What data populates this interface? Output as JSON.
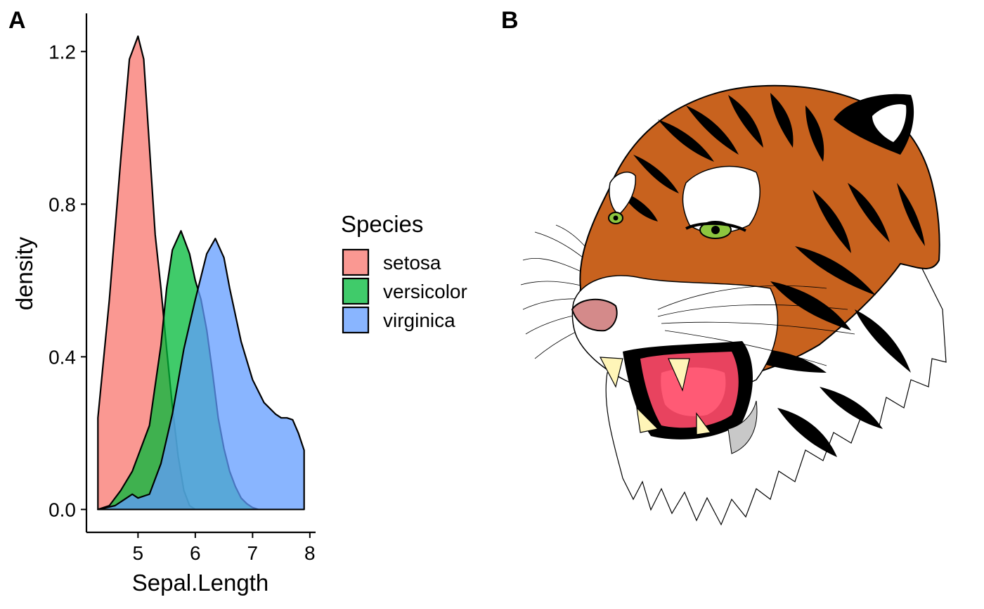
{
  "panels": {
    "a_label": "A",
    "b_label": "B"
  },
  "chart_data": {
    "type": "area",
    "xlabel": "Sepal.Length",
    "ylabel": "density",
    "xlim": [
      4.1,
      8.1
    ],
    "ylim": [
      -0.06,
      1.3
    ],
    "x_ticks": [
      5,
      6,
      7,
      8
    ],
    "y_ticks": [
      0.0,
      0.4,
      0.8,
      1.2
    ],
    "y_tick_labels": [
      "0.0",
      "0.4",
      "0.8",
      "1.2"
    ],
    "grid": false,
    "legend_title": "Species",
    "legend_position": "right",
    "series": [
      {
        "name": "setosa",
        "color": "#F8766D",
        "points": [
          [
            4.3,
            0.24
          ],
          [
            4.5,
            0.55
          ],
          [
            4.7,
            0.92
          ],
          [
            4.85,
            1.18
          ],
          [
            5.0,
            1.24
          ],
          [
            5.1,
            1.18
          ],
          [
            5.2,
            0.95
          ],
          [
            5.3,
            0.72
          ],
          [
            5.4,
            0.58
          ],
          [
            5.5,
            0.42
          ],
          [
            5.6,
            0.27
          ],
          [
            5.7,
            0.14
          ],
          [
            5.8,
            0.05
          ],
          [
            5.9,
            0.01
          ],
          [
            6.0,
            0.0
          ]
        ]
      },
      {
        "name": "versicolor",
        "color": "#00BA38",
        "points": [
          [
            4.3,
            0.0
          ],
          [
            4.5,
            0.01
          ],
          [
            4.7,
            0.05
          ],
          [
            4.9,
            0.1
          ],
          [
            5.0,
            0.14
          ],
          [
            5.1,
            0.18
          ],
          [
            5.2,
            0.22
          ],
          [
            5.4,
            0.43
          ],
          [
            5.5,
            0.58
          ],
          [
            5.6,
            0.68
          ],
          [
            5.75,
            0.73
          ],
          [
            5.9,
            0.67
          ],
          [
            6.0,
            0.6
          ],
          [
            6.1,
            0.55
          ],
          [
            6.2,
            0.47
          ],
          [
            6.3,
            0.36
          ],
          [
            6.4,
            0.24
          ],
          [
            6.5,
            0.16
          ],
          [
            6.6,
            0.1
          ],
          [
            6.7,
            0.06
          ],
          [
            6.8,
            0.03
          ],
          [
            6.9,
            0.015
          ],
          [
            7.0,
            0.005
          ],
          [
            7.1,
            0.0
          ]
        ]
      },
      {
        "name": "virginica",
        "color": "#619CFF",
        "points": [
          [
            4.3,
            0.0
          ],
          [
            4.6,
            0.01
          ],
          [
            4.8,
            0.03
          ],
          [
            4.9,
            0.04
          ],
          [
            5.0,
            0.03
          ],
          [
            5.2,
            0.04
          ],
          [
            5.4,
            0.12
          ],
          [
            5.6,
            0.25
          ],
          [
            5.8,
            0.42
          ],
          [
            6.0,
            0.55
          ],
          [
            6.2,
            0.67
          ],
          [
            6.35,
            0.71
          ],
          [
            6.5,
            0.66
          ],
          [
            6.6,
            0.58
          ],
          [
            6.8,
            0.44
          ],
          [
            7.0,
            0.34
          ],
          [
            7.2,
            0.28
          ],
          [
            7.4,
            0.25
          ],
          [
            7.5,
            0.24
          ],
          [
            7.6,
            0.24
          ],
          [
            7.7,
            0.235
          ],
          [
            7.8,
            0.2
          ],
          [
            7.9,
            0.155
          ]
        ]
      }
    ]
  },
  "tiger": {
    "colors": {
      "fur": "#C8621E",
      "stripe": "#000000",
      "white": "#FFFFFF",
      "eye": "#8DC63F",
      "mouth": "#E8435F",
      "tongue": "#FF5A75",
      "nose": "#D48A8A",
      "fang": "#FFF5B8",
      "shadow": "#C8C8C8"
    }
  }
}
